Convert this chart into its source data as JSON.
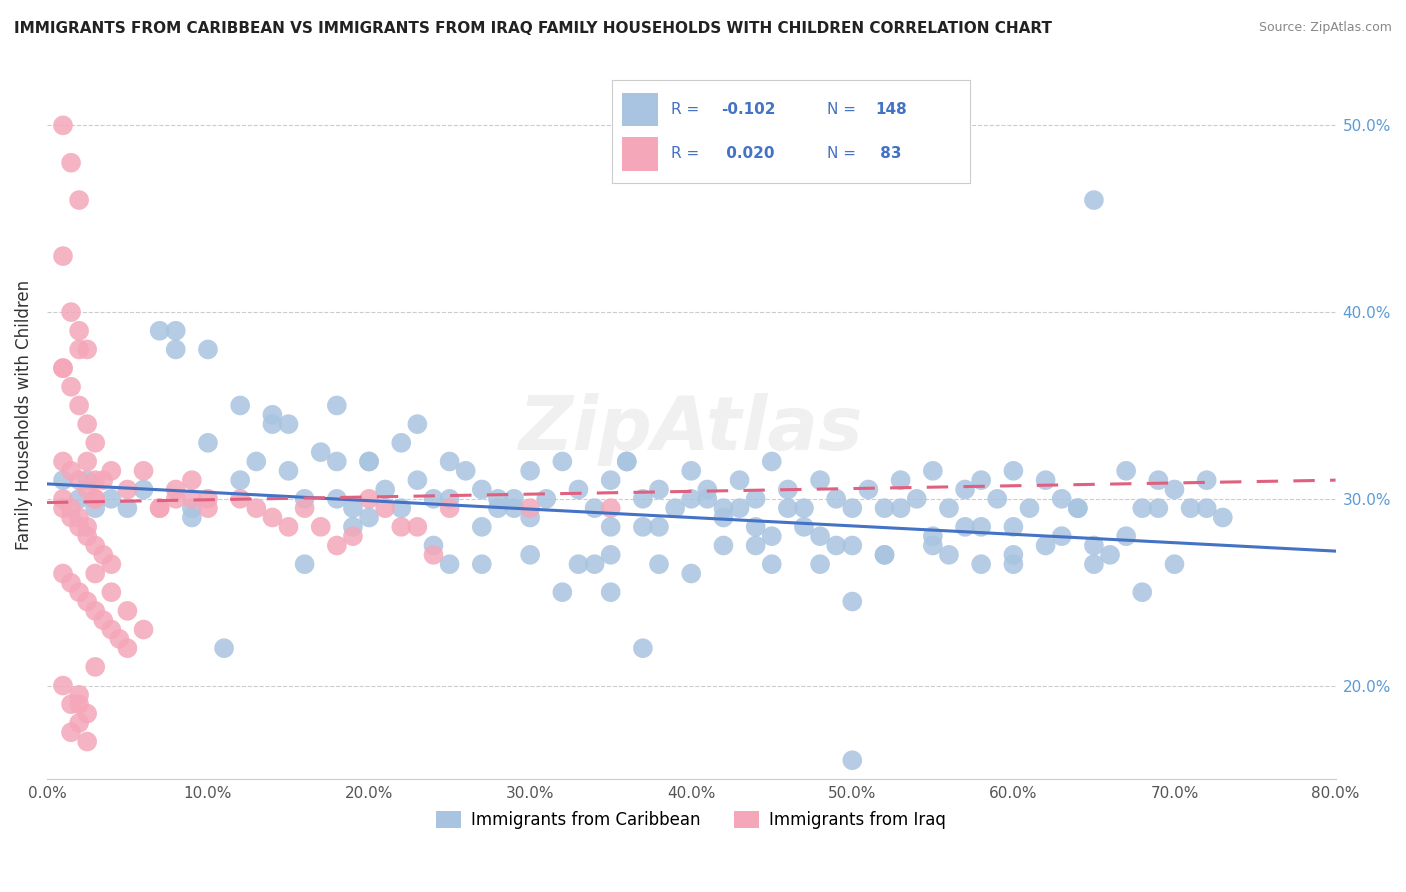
{
  "title": "IMMIGRANTS FROM CARIBBEAN VS IMMIGRANTS FROM IRAQ FAMILY HOUSEHOLDS WITH CHILDREN CORRELATION CHART",
  "source": "Source: ZipAtlas.com",
  "ylabel": "Family Households with Children",
  "watermark": "ZipAtlas",
  "color_blue": "#a8c4e0",
  "color_pink": "#f4a7b9",
  "line_blue": "#4472c4",
  "line_pink": "#e06080",
  "xmin": 0.0,
  "xmax": 0.8,
  "ymin": 0.15,
  "ymax": 0.54,
  "xtick_vals": [
    0.0,
    0.1,
    0.2,
    0.3,
    0.4,
    0.5,
    0.6,
    0.7,
    0.8
  ],
  "xtick_labels": [
    "0.0%",
    "10.0%",
    "20.0%",
    "30.0%",
    "40.0%",
    "50.0%",
    "60.0%",
    "70.0%",
    "80.0%"
  ],
  "ytick_labels_right": [
    "20.0%",
    "30.0%",
    "40.0%",
    "50.0%"
  ],
  "ytick_vals_right": [
    0.2,
    0.3,
    0.4,
    0.5
  ],
  "legend_label1": "Immigrants from Caribbean",
  "legend_label2": "Immigrants from Iraq",
  "blue_line_y": [
    0.308,
    0.272
  ],
  "pink_line_y": [
    0.298,
    0.31
  ],
  "blue_x": [
    0.02,
    0.01,
    0.03,
    0.025,
    0.04,
    0.05,
    0.06,
    0.07,
    0.08,
    0.09,
    0.1,
    0.12,
    0.13,
    0.14,
    0.15,
    0.16,
    0.17,
    0.18,
    0.19,
    0.2,
    0.21,
    0.22,
    0.23,
    0.24,
    0.25,
    0.26,
    0.27,
    0.28,
    0.29,
    0.3,
    0.31,
    0.32,
    0.33,
    0.34,
    0.35,
    0.36,
    0.37,
    0.38,
    0.39,
    0.4,
    0.41,
    0.42,
    0.43,
    0.44,
    0.45,
    0.46,
    0.47,
    0.48,
    0.49,
    0.5,
    0.51,
    0.52,
    0.53,
    0.54,
    0.55,
    0.56,
    0.57,
    0.58,
    0.59,
    0.6,
    0.61,
    0.62,
    0.63,
    0.64,
    0.65,
    0.66,
    0.67,
    0.68,
    0.69,
    0.7,
    0.71,
    0.72,
    0.73,
    0.3,
    0.32,
    0.35,
    0.28,
    0.18,
    0.22,
    0.15,
    0.25,
    0.4,
    0.45,
    0.5,
    0.55,
    0.6,
    0.65,
    0.1,
    0.08,
    0.2,
    0.38,
    0.42,
    0.48,
    0.52,
    0.58,
    0.62,
    0.67,
    0.44,
    0.34,
    0.37,
    0.29,
    0.53,
    0.47,
    0.56,
    0.43,
    0.27,
    0.36,
    0.24,
    0.16,
    0.19,
    0.41,
    0.46,
    0.49,
    0.64,
    0.69,
    0.72,
    0.37,
    0.5,
    0.55,
    0.38,
    0.3,
    0.25,
    0.14,
    0.2,
    0.35,
    0.42,
    0.48,
    0.58,
    0.63,
    0.68,
    0.44,
    0.52,
    0.33,
    0.27,
    0.23,
    0.18,
    0.11,
    0.09,
    0.6,
    0.65,
    0.7,
    0.57,
    0.4,
    0.5,
    0.45,
    0.35,
    0.6,
    0.12
  ],
  "blue_y": [
    0.3,
    0.31,
    0.295,
    0.31,
    0.3,
    0.295,
    0.305,
    0.39,
    0.38,
    0.295,
    0.33,
    0.35,
    0.32,
    0.34,
    0.315,
    0.3,
    0.325,
    0.3,
    0.295,
    0.32,
    0.305,
    0.295,
    0.31,
    0.3,
    0.32,
    0.315,
    0.305,
    0.3,
    0.295,
    0.315,
    0.3,
    0.32,
    0.305,
    0.295,
    0.31,
    0.32,
    0.3,
    0.305,
    0.295,
    0.315,
    0.305,
    0.295,
    0.31,
    0.3,
    0.32,
    0.305,
    0.295,
    0.31,
    0.3,
    0.16,
    0.305,
    0.295,
    0.31,
    0.3,
    0.315,
    0.295,
    0.305,
    0.31,
    0.3,
    0.315,
    0.295,
    0.31,
    0.28,
    0.295,
    0.46,
    0.27,
    0.315,
    0.25,
    0.295,
    0.305,
    0.295,
    0.31,
    0.29,
    0.27,
    0.25,
    0.25,
    0.295,
    0.35,
    0.33,
    0.34,
    0.3,
    0.26,
    0.265,
    0.275,
    0.28,
    0.27,
    0.265,
    0.38,
    0.39,
    0.32,
    0.265,
    0.29,
    0.28,
    0.27,
    0.265,
    0.275,
    0.28,
    0.275,
    0.265,
    0.285,
    0.3,
    0.295,
    0.285,
    0.27,
    0.295,
    0.265,
    0.32,
    0.275,
    0.265,
    0.285,
    0.3,
    0.295,
    0.275,
    0.295,
    0.31,
    0.295,
    0.22,
    0.245,
    0.275,
    0.285,
    0.29,
    0.265,
    0.345,
    0.29,
    0.285,
    0.275,
    0.265,
    0.285,
    0.3,
    0.295,
    0.285,
    0.27,
    0.265,
    0.285,
    0.34,
    0.32,
    0.22,
    0.29,
    0.285,
    0.275,
    0.265,
    0.285,
    0.3,
    0.295,
    0.28,
    0.27,
    0.265,
    0.31
  ],
  "pink_x": [
    0.01,
    0.015,
    0.02,
    0.025,
    0.01,
    0.015,
    0.02,
    0.025,
    0.03,
    0.01,
    0.015,
    0.02,
    0.025,
    0.03,
    0.01,
    0.015,
    0.02,
    0.025,
    0.03,
    0.035,
    0.04,
    0.01,
    0.015,
    0.02,
    0.025,
    0.03,
    0.035,
    0.04,
    0.045,
    0.05,
    0.06,
    0.07,
    0.08,
    0.09,
    0.1,
    0.12,
    0.13,
    0.14,
    0.15,
    0.16,
    0.17,
    0.18,
    0.19,
    0.2,
    0.21,
    0.22,
    0.23,
    0.24,
    0.25,
    0.3,
    0.35,
    0.01,
    0.015,
    0.02,
    0.025,
    0.03,
    0.01,
    0.015,
    0.02,
    0.025,
    0.03,
    0.035,
    0.04,
    0.05,
    0.06,
    0.07,
    0.08,
    0.09,
    0.1,
    0.02,
    0.025,
    0.015,
    0.02,
    0.01,
    0.03,
    0.015,
    0.025,
    0.02,
    0.01,
    0.05,
    0.04,
    0.03,
    0.02
  ],
  "pink_y": [
    0.43,
    0.4,
    0.39,
    0.38,
    0.37,
    0.36,
    0.35,
    0.34,
    0.33,
    0.32,
    0.315,
    0.31,
    0.305,
    0.3,
    0.295,
    0.29,
    0.285,
    0.28,
    0.275,
    0.27,
    0.265,
    0.26,
    0.255,
    0.25,
    0.245,
    0.24,
    0.235,
    0.23,
    0.225,
    0.22,
    0.23,
    0.295,
    0.3,
    0.31,
    0.3,
    0.3,
    0.295,
    0.29,
    0.285,
    0.295,
    0.285,
    0.275,
    0.28,
    0.3,
    0.295,
    0.285,
    0.285,
    0.27,
    0.295,
    0.295,
    0.295,
    0.5,
    0.48,
    0.46,
    0.32,
    0.31,
    0.3,
    0.295,
    0.29,
    0.285,
    0.3,
    0.31,
    0.315,
    0.305,
    0.315,
    0.295,
    0.305,
    0.3,
    0.295,
    0.18,
    0.17,
    0.19,
    0.195,
    0.2,
    0.21,
    0.175,
    0.185,
    0.38,
    0.37,
    0.24,
    0.25,
    0.26,
    0.19
  ]
}
